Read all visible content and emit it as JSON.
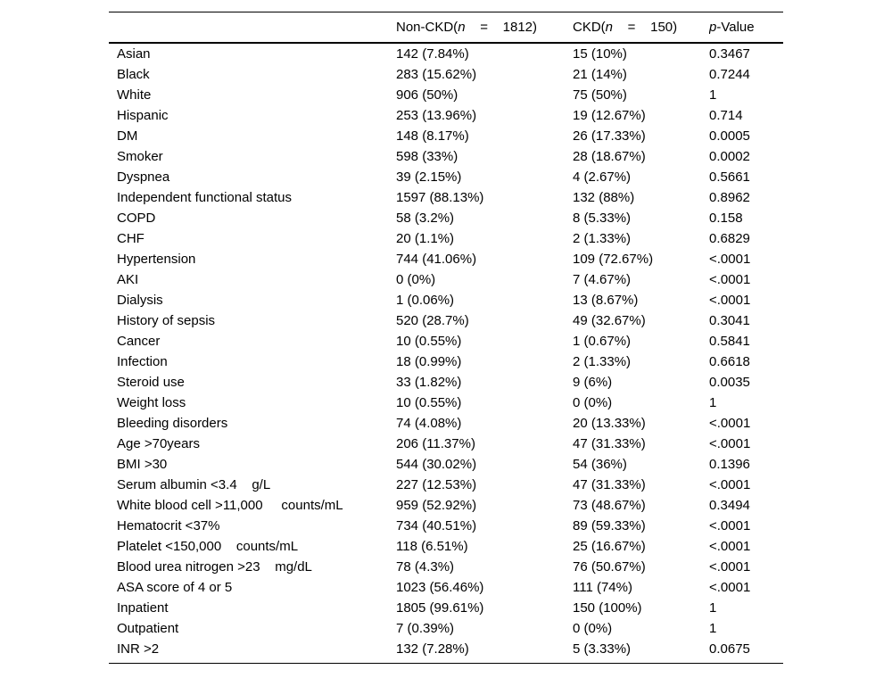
{
  "table": {
    "header": {
      "row_label_column": "",
      "non_ckd": {
        "pre": "Non-CKD(",
        "var": "n",
        "eq": "    =    ",
        "count": "1812)"
      },
      "ckd": {
        "pre": "CKD(",
        "var": "n",
        "eq": "    =    ",
        "count": "150)"
      },
      "p": {
        "var": "p",
        "rest": "-Value"
      }
    }
  },
  "rows": [
    {
      "label": "Asian",
      "non_ckd": "142 (7.84%)",
      "ckd": "15 (10%)",
      "p": "0.3467"
    },
    {
      "label": "Black",
      "non_ckd": "283 (15.62%)",
      "ckd": "21 (14%)",
      "p": "0.7244"
    },
    {
      "label": "White",
      "non_ckd": "906 (50%)",
      "ckd": "75 (50%)",
      "p": "1"
    },
    {
      "label": "Hispanic",
      "non_ckd": "253 (13.96%)",
      "ckd": "19 (12.67%)",
      "p": "0.714"
    },
    {
      "label": "DM",
      "non_ckd": "148 (8.17%)",
      "ckd": "26 (17.33%)",
      "p": "0.0005"
    },
    {
      "label": "Smoker",
      "non_ckd": "598 (33%)",
      "ckd": "28 (18.67%)",
      "p": "0.0002"
    },
    {
      "label": "Dyspnea",
      "non_ckd": "39 (2.15%)",
      "ckd": "4 (2.67%)",
      "p": "0.5661"
    },
    {
      "label": "Independent functional status",
      "non_ckd": "1597 (88.13%)",
      "ckd": "132 (88%)",
      "p": "0.8962"
    },
    {
      "label": "COPD",
      "non_ckd": "58 (3.2%)",
      "ckd": "8 (5.33%)",
      "p": "0.158"
    },
    {
      "label": "CHF",
      "non_ckd": "20 (1.1%)",
      "ckd": "2 (1.33%)",
      "p": "0.6829"
    },
    {
      "label": "Hypertension",
      "non_ckd": "744 (41.06%)",
      "ckd": "109 (72.67%)",
      "p": "<.0001"
    },
    {
      "label": "AKI",
      "non_ckd": "0 (0%)",
      "ckd": "7 (4.67%)",
      "p": "<.0001"
    },
    {
      "label": "Dialysis",
      "non_ckd": "1 (0.06%)",
      "ckd": "13 (8.67%)",
      "p": "<.0001"
    },
    {
      "label": "History of sepsis",
      "non_ckd": "520 (28.7%)",
      "ckd": "49 (32.67%)",
      "p": "0.3041"
    },
    {
      "label": "Cancer",
      "non_ckd": "10 (0.55%)",
      "ckd": "1 (0.67%)",
      "p": "0.5841"
    },
    {
      "label": "Infection",
      "non_ckd": "18 (0.99%)",
      "ckd": "2 (1.33%)",
      "p": "0.6618"
    },
    {
      "label": "Steroid use",
      "non_ckd": "33 (1.82%)",
      "ckd": "9 (6%)",
      "p": "0.0035"
    },
    {
      "label": "Weight loss",
      "non_ckd": "10 (0.55%)",
      "ckd": "0 (0%)",
      "p": "1"
    },
    {
      "label": "Bleeding disorders",
      "non_ckd": "74 (4.08%)",
      "ckd": "20 (13.33%)",
      "p": "<.0001"
    },
    {
      "label": "Age >70years",
      "non_ckd": "206 (11.37%)",
      "ckd": "47 (31.33%)",
      "p": "<.0001"
    },
    {
      "label": "BMI >30",
      "non_ckd": "544 (30.02%)",
      "ckd": "54 (36%)",
      "p": "0.1396"
    },
    {
      "label": "Serum albumin <3.4    g/L",
      "non_ckd": "227 (12.53%)",
      "ckd": "47 (31.33%)",
      "p": "<.0001"
    },
    {
      "label": "White blood cell >11,000     counts/mL",
      "non_ckd": "959 (52.92%)",
      "ckd": "73 (48.67%)",
      "p": "0.3494"
    },
    {
      "label": "Hematocrit <37%",
      "non_ckd": "734 (40.51%)",
      "ckd": "89 (59.33%)",
      "p": "<.0001"
    },
    {
      "label": "Platelet <150,000    counts/mL",
      "non_ckd": "118 (6.51%)",
      "ckd": "25 (16.67%)",
      "p": "<.0001"
    },
    {
      "label": "Blood urea nitrogen >23    mg/dL",
      "non_ckd": "78 (4.3%)",
      "ckd": "76 (50.67%)",
      "p": "<.0001"
    },
    {
      "label": "ASA score of 4 or 5",
      "non_ckd": "1023 (56.46%)",
      "ckd": "111 (74%)",
      "p": "<.0001"
    },
    {
      "label": "Inpatient",
      "non_ckd": "1805 (99.61%)",
      "ckd": "150 (100%)",
      "p": "1"
    },
    {
      "label": "Outpatient",
      "non_ckd": "7 (0.39%)",
      "ckd": "0 (0%)",
      "p": "1"
    },
    {
      "label": "INR >2",
      "non_ckd": "132 (7.28%)",
      "ckd": "5 (3.33%)",
      "p": "0.0675"
    }
  ],
  "colors": {
    "text": "#000000",
    "rule": "#000000",
    "background": "#ffffff"
  }
}
